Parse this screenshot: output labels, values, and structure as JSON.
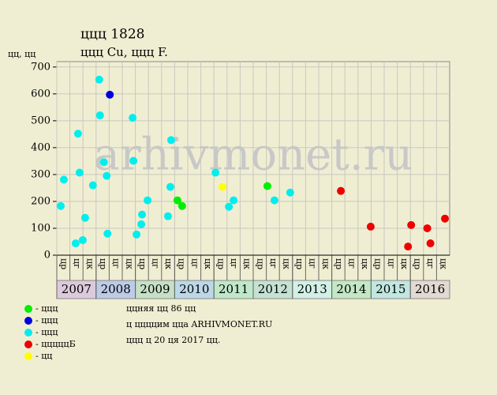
{
  "chart_data": {
    "type": "scatter",
    "title": "ццц 1828",
    "subtitle": "ццц Cu, ццц F.",
    "y_label": "цц, цц",
    "watermark": "arhivmonet.ru",
    "xlim": [
      2007,
      2017
    ],
    "xticks": [
      2007,
      2008,
      2009,
      2010,
      2011,
      2012,
      2013,
      2014,
      2015,
      2016
    ],
    "band_colors": [
      "#dccadc",
      "#bccbe6",
      "#c6e0c6",
      "#bcd8e8",
      "#bfe8c8",
      "#c4e2d2",
      "#d2f0e6",
      "#c2e8c4",
      "#c2e6e0",
      "#e2dad2"
    ],
    "subperiods": [
      "цр",
      "цг",
      "цк"
    ],
    "ylim": [
      0,
      720
    ],
    "yticks": [
      0,
      100,
      200,
      300,
      400,
      500,
      600,
      700
    ],
    "grid": true,
    "series": [
      {
        "name": "- ццц",
        "color": "#00ee00",
        "x": [
          2010.07,
          2010.19,
          2012.36
        ],
        "values": [
          204,
          183,
          257
        ]
      },
      {
        "name": "- ццц",
        "color": "#0000dd",
        "x": [
          2008.35
        ],
        "values": [
          597
        ]
      },
      {
        "name": "- ццц",
        "color": "#00eeee",
        "x": [
          2007.1,
          2007.18,
          2007.54,
          2007.48,
          2007.66,
          2007.58,
          2007.72,
          2007.92,
          2008.08,
          2008.1,
          2008.2,
          2008.27,
          2008.29,
          2008.93,
          2008.95,
          2009.03,
          2009.15,
          2009.17,
          2009.31,
          2009.83,
          2009.89,
          2009.91,
          2011.04,
          2011.38,
          2011.5,
          2012.54,
          2012.94
        ],
        "values": [
          183,
          281,
          452,
          44,
          56,
          307,
          139,
          260,
          653,
          520,
          346,
          295,
          80,
          511,
          351,
          77,
          115,
          151,
          204,
          145,
          254,
          428,
          307,
          180,
          204,
          204,
          233
        ]
      },
      {
        "name": "- цццццБ",
        "color": "#ee0000",
        "x": [
          2014.23,
          2014.99,
          2015.94,
          2016.02,
          2016.43,
          2016.51,
          2016.88
        ],
        "values": [
          239,
          106,
          32,
          112,
          100,
          44,
          136
        ]
      },
      {
        "name": "- цц",
        "color": "#ffff00",
        "x": [
          2011.22
        ],
        "values": [
          254
        ]
      }
    ],
    "notes": [
      "ццняя цц 86 цц",
      "ц ццццим цца ARHIVMONET.RU",
      "ццц ц 20 ця 2017 цц."
    ]
  }
}
